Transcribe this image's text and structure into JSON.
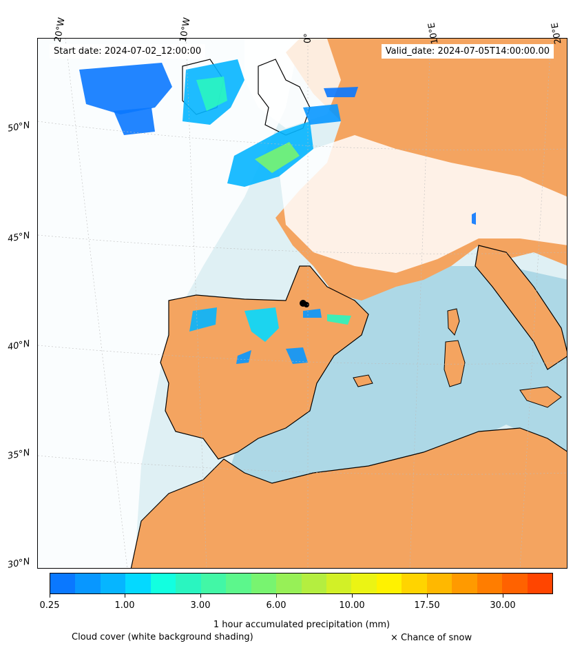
{
  "header": {
    "start_date": "Start date: 2024-07-02_12:00:00",
    "valid_date": "Valid_date: 2024-07-05T14:00:00.00"
  },
  "longitude_labels": [
    "20°W",
    "10°W",
    "0°",
    "10°E",
    "20°E"
  ],
  "latitude_labels": [
    "50°N",
    "45°N",
    "40°N",
    "35°N",
    "30°N"
  ],
  "colorbar": {
    "title": "1 hour accumulated precipitation (mm)",
    "tick_labels": [
      "0.25",
      "1.00",
      "3.00",
      "6.00",
      "10.00",
      "17.50",
      "30.00"
    ],
    "colors": [
      "#0a78ff",
      "#0897ff",
      "#06b5ff",
      "#04d9ff",
      "#12ffe0",
      "#2af5c0",
      "#42f7a6",
      "#5cf78c",
      "#78f470",
      "#97f057",
      "#b4ee40",
      "#d2f027",
      "#ebf414",
      "#fff200",
      "#ffd400",
      "#ffb800",
      "#ff9a00",
      "#ff7d00",
      "#ff6200",
      "#ff4500"
    ]
  },
  "legend": {
    "cloud_cover": "Cloud cover (white background shading)",
    "snow": "× Chance of snow"
  },
  "colors": {
    "land": "#f4a460",
    "sea": "#add8e6",
    "coast": "#000000",
    "cloud": "#ffffff"
  }
}
